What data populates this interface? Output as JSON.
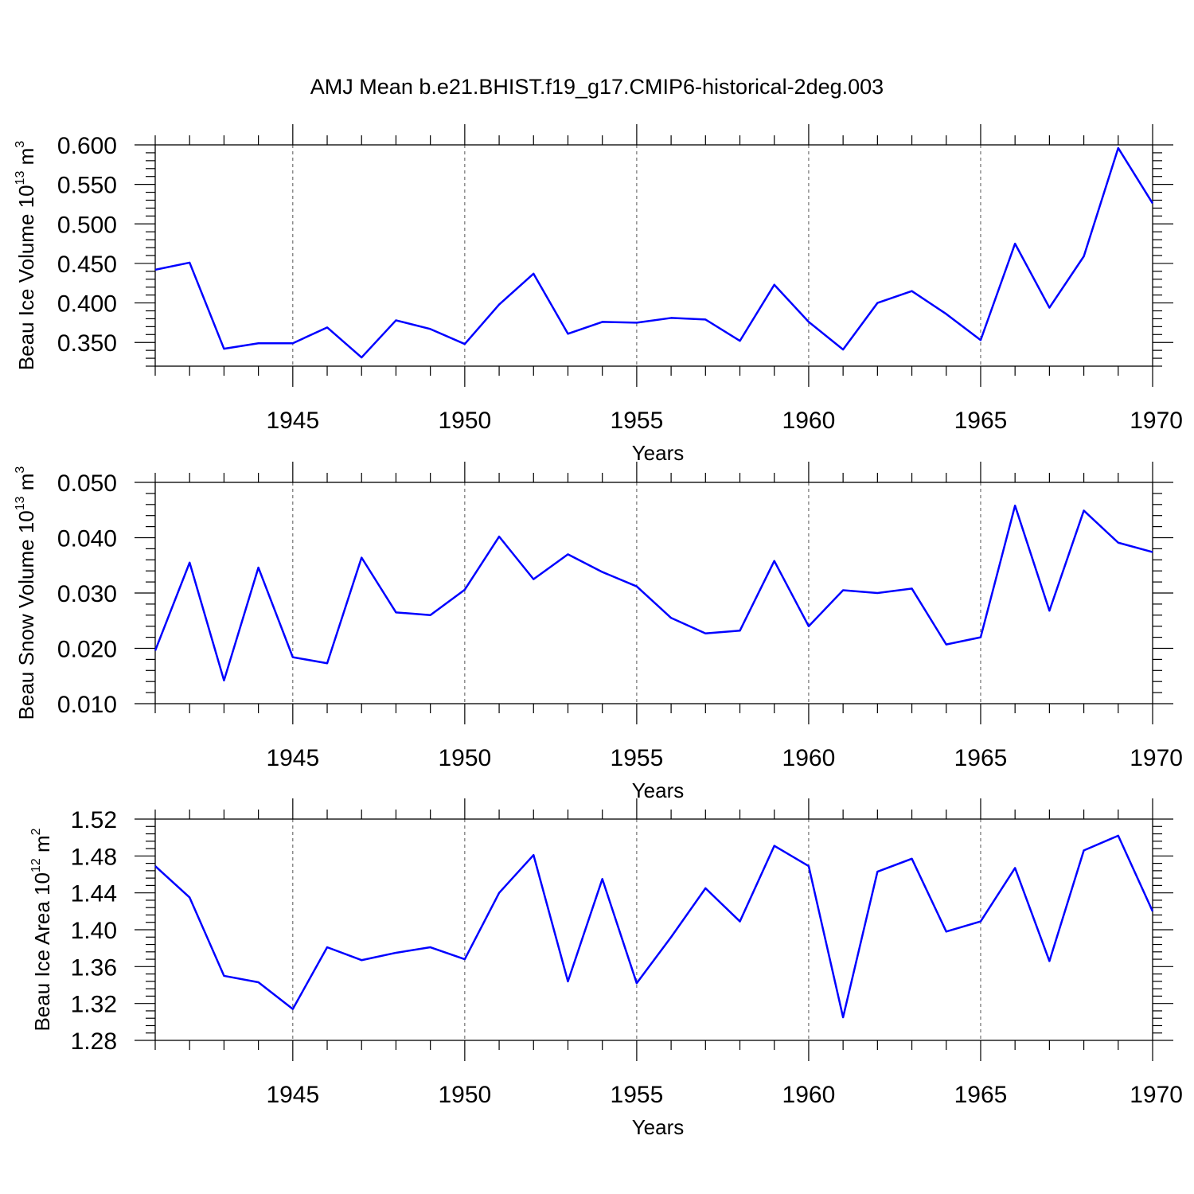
{
  "figure_title": "AMJ Mean b.e21.BHIST.f19_g17.CMIP6-historical-2deg.003",
  "chart_data": [
    {
      "type": "line",
      "title": "",
      "xlabel": "Years",
      "ylabel": "Beau Ice Volume 10",
      "ylabel_exponent": "13",
      "ylabel_unit": "m",
      "ylabel_unit_exponent": "3",
      "xlim": [
        1941,
        1970
      ],
      "ylim": [
        0.32,
        0.6
      ],
      "x_ticks": [
        1945,
        1950,
        1955,
        1960,
        1965,
        1970
      ],
      "y_ticks": [
        0.35,
        0.4,
        0.45,
        0.5,
        0.55,
        0.6
      ],
      "y_tick_labels": [
        "0.350",
        "0.400",
        "0.450",
        "0.500",
        "0.550",
        "0.600"
      ],
      "y_minor_step": 0.01,
      "grid": "vertical dashed at major x ticks",
      "color": "#0000ff",
      "x": [
        1941,
        1942,
        1943,
        1944,
        1945,
        1946,
        1947,
        1948,
        1949,
        1950,
        1951,
        1952,
        1953,
        1954,
        1955,
        1956,
        1957,
        1958,
        1959,
        1960,
        1961,
        1962,
        1963,
        1964,
        1965,
        1966,
        1967,
        1968,
        1969,
        1970
      ],
      "values": [
        0.442,
        0.451,
        0.342,
        0.349,
        0.349,
        0.369,
        0.331,
        0.378,
        0.367,
        0.348,
        0.398,
        0.437,
        0.361,
        0.376,
        0.375,
        0.381,
        0.379,
        0.352,
        0.423,
        0.376,
        0.341,
        0.4,
        0.415,
        0.386,
        0.353,
        0.475,
        0.394,
        0.459,
        0.596,
        0.526
      ]
    },
    {
      "type": "line",
      "title": "",
      "xlabel": "Years",
      "ylabel": "Beau Snow Volume 10",
      "ylabel_exponent": "13",
      "ylabel_unit": "m",
      "ylabel_unit_exponent": "3",
      "xlim": [
        1941,
        1970
      ],
      "ylim": [
        0.01,
        0.05
      ],
      "x_ticks": [
        1945,
        1950,
        1955,
        1960,
        1965,
        1970
      ],
      "y_ticks": [
        0.01,
        0.02,
        0.03,
        0.04,
        0.05
      ],
      "y_tick_labels": [
        "0.010",
        "0.020",
        "0.030",
        "0.040",
        "0.050"
      ],
      "y_minor_step": 0.002,
      "grid": "vertical dashed at major x ticks",
      "color": "#0000ff",
      "x": [
        1941,
        1942,
        1943,
        1944,
        1945,
        1946,
        1947,
        1948,
        1949,
        1950,
        1951,
        1952,
        1953,
        1954,
        1955,
        1956,
        1957,
        1958,
        1959,
        1960,
        1961,
        1962,
        1963,
        1964,
        1965,
        1966,
        1967,
        1968,
        1969,
        1970
      ],
      "values": [
        0.0196,
        0.0355,
        0.0142,
        0.0346,
        0.0184,
        0.0173,
        0.0364,
        0.0265,
        0.026,
        0.0306,
        0.0402,
        0.0325,
        0.037,
        0.0338,
        0.0312,
        0.0255,
        0.0227,
        0.0232,
        0.0358,
        0.024,
        0.0305,
        0.03,
        0.0308,
        0.0207,
        0.022,
        0.0458,
        0.0268,
        0.0449,
        0.0391,
        0.0374
      ]
    },
    {
      "type": "line",
      "title": "",
      "xlabel": "Years",
      "ylabel": "Beau Ice Area 10",
      "ylabel_exponent": "12",
      "ylabel_unit": "m",
      "ylabel_unit_exponent": "2",
      "xlim": [
        1941,
        1970
      ],
      "ylim": [
        1.28,
        1.52
      ],
      "x_ticks": [
        1945,
        1950,
        1955,
        1960,
        1965,
        1970
      ],
      "y_ticks": [
        1.28,
        1.32,
        1.36,
        1.4,
        1.44,
        1.48,
        1.52
      ],
      "y_tick_labels": [
        "1.28",
        "1.32",
        "1.36",
        "1.40",
        "1.44",
        "1.48",
        "1.52"
      ],
      "y_minor_step": 0.008,
      "grid": "vertical dashed at major x ticks",
      "color": "#0000ff",
      "x": [
        1941,
        1942,
        1943,
        1944,
        1945,
        1946,
        1947,
        1948,
        1949,
        1950,
        1951,
        1952,
        1953,
        1954,
        1955,
        1956,
        1957,
        1958,
        1959,
        1960,
        1961,
        1962,
        1963,
        1964,
        1965,
        1966,
        1967,
        1968,
        1969,
        1970
      ],
      "values": [
        1.469,
        1.435,
        1.35,
        1.343,
        1.314,
        1.381,
        1.367,
        1.375,
        1.381,
        1.368,
        1.44,
        1.481,
        1.344,
        1.455,
        1.342,
        1.392,
        1.445,
        1.409,
        1.491,
        1.469,
        1.305,
        1.463,
        1.477,
        1.398,
        1.409,
        1.467,
        1.366,
        1.486,
        1.502,
        1.42
      ]
    }
  ]
}
